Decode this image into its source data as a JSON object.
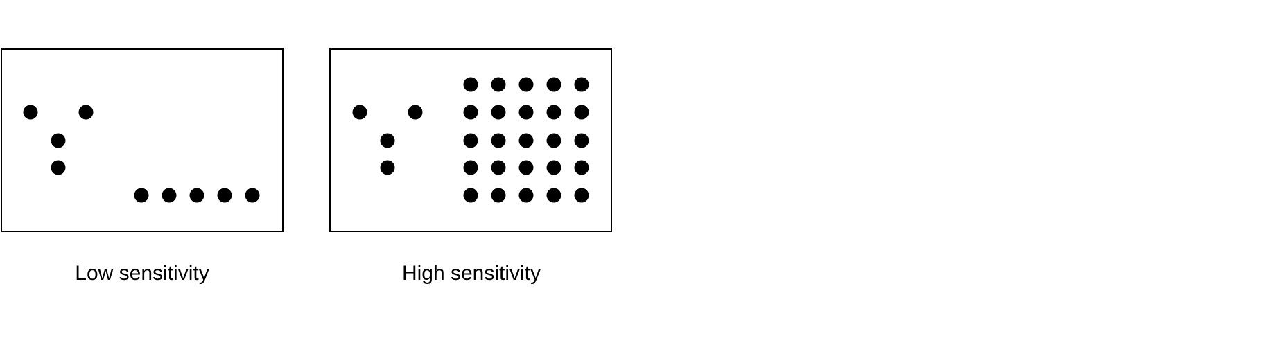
{
  "colors": {
    "background": "#ffffff",
    "ink": "#000000"
  },
  "panels": [
    {
      "id": "low",
      "label": "Low sensitivity",
      "dot_pattern": "sparse: small V shape of 4 dots and a single row of 5 dots"
    },
    {
      "id": "high",
      "label": "High sensitivity",
      "dot_pattern": "dense: small V shape of 4 dots and a full 5 by 5 grid of dots"
    }
  ]
}
